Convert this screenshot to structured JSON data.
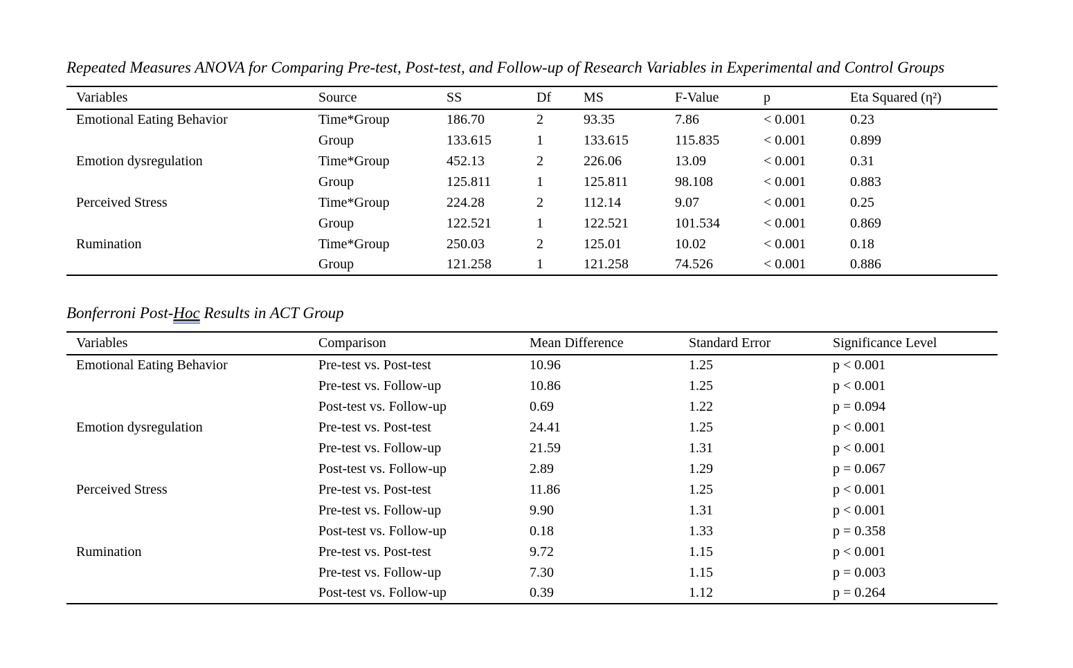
{
  "page": {
    "background_color": "#ffffff",
    "text_color": "#000000",
    "grammar_underline_color": "#2b5fd9"
  },
  "anova_section": {
    "title": "Repeated Measures ANOVA for Comparing Pre-test, Post-test, and Follow-up of Research Variables in Experimental and Control Groups",
    "table": {
      "headers": [
        "Variables",
        "Source",
        "SS",
        "Df",
        "MS",
        "F-Value",
        "p",
        "Eta Squared (η²)"
      ],
      "rows": [
        [
          "Emotional Eating Behavior",
          "Time*Group",
          "186.70",
          "2",
          "93.35",
          "7.86",
          "< 0.001",
          "0.23"
        ],
        [
          "",
          "Group",
          "133.615",
          "1",
          "133.615",
          "115.835",
          "< 0.001",
          "0.899"
        ],
        [
          "Emotion dysregulation",
          "Time*Group",
          "452.13",
          "2",
          "226.06",
          "13.09",
          "< 0.001",
          "0.31"
        ],
        [
          "",
          "Group",
          "125.811",
          "1",
          "125.811",
          "98.108",
          "< 0.001",
          "0.883"
        ],
        [
          "Perceived Stress",
          "Time*Group",
          "224.28",
          "2",
          "112.14",
          "9.07",
          "< 0.001",
          "0.25"
        ],
        [
          "",
          "Group",
          "122.521",
          "1",
          "122.521",
          "101.534",
          "< 0.001",
          "0.869"
        ],
        [
          "Rumination",
          "Time*Group",
          "250.03",
          "2",
          "125.01",
          "10.02",
          "< 0.001",
          "0.18"
        ],
        [
          "",
          "Group",
          "121.258",
          "1",
          "121.258",
          "74.526",
          "< 0.001",
          "0.886"
        ]
      ]
    }
  },
  "posthoc_section": {
    "title_prefix": "Bonferroni Post-",
    "title_marked_word": "Hoc",
    "title_suffix": " Results in ACT Group",
    "table": {
      "headers": [
        "Variables",
        "Comparison",
        "Mean Difference",
        "Standard Error",
        "Significance Level"
      ],
      "rows": [
        [
          "Emotional Eating Behavior",
          "Pre-test vs. Post-test",
          "10.96",
          "1.25",
          "p < 0.001"
        ],
        [
          "",
          "Pre-test vs. Follow-up",
          "10.86",
          "1.25",
          "p < 0.001"
        ],
        [
          "",
          "Post-test vs. Follow-up",
          "0.69",
          "1.22",
          "p = 0.094"
        ],
        [
          "Emotion dysregulation",
          "Pre-test vs. Post-test",
          "24.41",
          "1.25",
          "p < 0.001"
        ],
        [
          "",
          "Pre-test vs. Follow-up",
          "21.59",
          "1.31",
          "p < 0.001"
        ],
        [
          "",
          "Post-test vs. Follow-up",
          "2.89",
          "1.29",
          "p = 0.067"
        ],
        [
          "Perceived Stress",
          "Pre-test vs. Post-test",
          "11.86",
          "1.25",
          "p < 0.001"
        ],
        [
          "",
          "Pre-test vs. Follow-up",
          "9.90",
          "1.31",
          "p < 0.001"
        ],
        [
          "",
          "Post-test vs. Follow-up",
          "0.18",
          "1.33",
          "p = 0.358"
        ],
        [
          "Rumination",
          "Pre-test vs. Post-test",
          "9.72",
          "1.15",
          "p < 0.001"
        ],
        [
          "",
          "Pre-test vs. Follow-up",
          "7.30",
          "1.15",
          "p = 0.003"
        ],
        [
          "",
          "Post-test vs. Follow-up",
          "0.39",
          "1.12",
          "p = 0.264"
        ]
      ]
    }
  }
}
